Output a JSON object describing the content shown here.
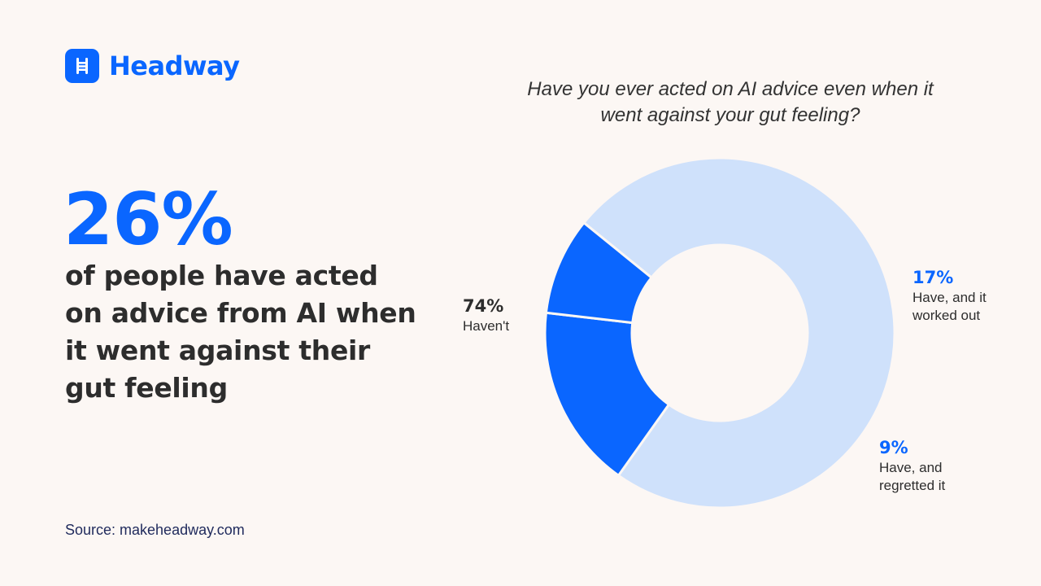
{
  "brand": {
    "name": "Headway",
    "logo_icon": "ladder-icon",
    "color": "#0a66ff"
  },
  "stat": {
    "value": "26%",
    "text": "of people have acted on advice from AI when it went against their gut feeling"
  },
  "source": "Source: makeheadway.com",
  "chart_data": {
    "type": "pie",
    "variant": "donut",
    "title": "Have you ever acted on AI advice even when it went against your gut feeling?",
    "slices": [
      {
        "value": 74,
        "label": "74%",
        "category": "Haven't",
        "color": "#cfe1fb",
        "label_color": "#2d2d2d"
      },
      {
        "value": 17,
        "label": "17%",
        "category": "Have, and it worked out",
        "color": "#0a66ff",
        "label_color": "#0a66ff"
      },
      {
        "value": 9,
        "label": "9%",
        "category": "Have, and regretted it",
        "color": "#0a66ff",
        "label_color": "#0a66ff"
      }
    ]
  }
}
